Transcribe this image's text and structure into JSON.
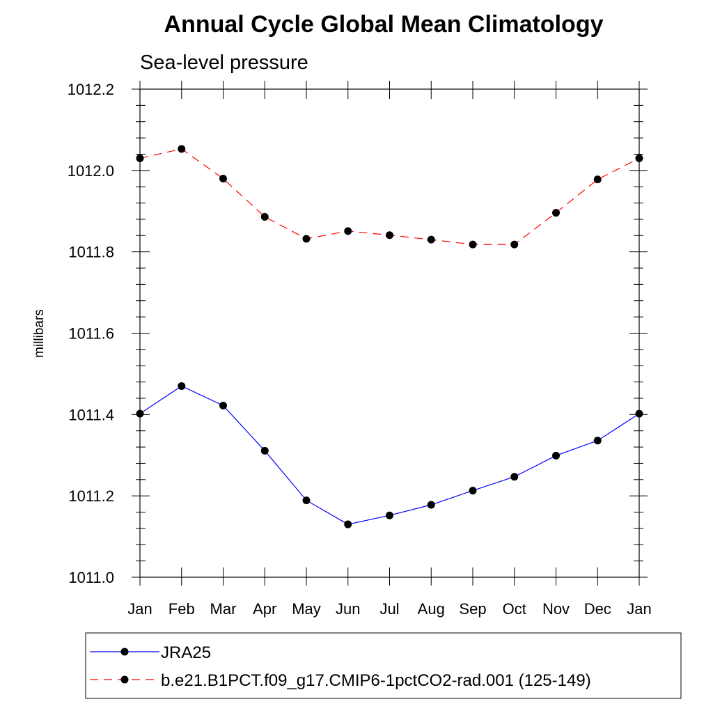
{
  "chart_data": {
    "type": "line",
    "title": "Annual Cycle Global Mean Climatology",
    "subtitle": "Sea-level pressure",
    "ylabel": "millibars",
    "xlabel": "",
    "categories": [
      "Jan",
      "Feb",
      "Mar",
      "Apr",
      "May",
      "Jun",
      "Jul",
      "Aug",
      "Sep",
      "Oct",
      "Nov",
      "Dec",
      "Jan"
    ],
    "ylim": [
      1011.0,
      1012.2
    ],
    "yticks": [
      "1011.0",
      "1011.2",
      "1011.4",
      "1011.6",
      "1011.8",
      "1012.0",
      "1012.2"
    ],
    "grid": false,
    "legend_position": "bottom",
    "series": [
      {
        "name": "JRA25",
        "color": "#0000ff",
        "dash": "solid",
        "marker": "filled-circle",
        "values": [
          1011.402,
          1011.47,
          1011.422,
          1011.311,
          1011.189,
          1011.13,
          1011.152,
          1011.178,
          1011.213,
          1011.247,
          1011.299,
          1011.336,
          1011.402
        ]
      },
      {
        "name": "b.e21.B1PCT.f09_g17.CMIP6-1pctCO2-rad.001 (125-149)",
        "color": "#ff0000",
        "dash": "dashed",
        "marker": "filled-circle",
        "values": [
          1012.03,
          1012.053,
          1011.98,
          1011.886,
          1011.832,
          1011.851,
          1011.841,
          1011.83,
          1011.818,
          1011.818,
          1011.896,
          1011.978,
          1012.03
        ]
      }
    ]
  }
}
